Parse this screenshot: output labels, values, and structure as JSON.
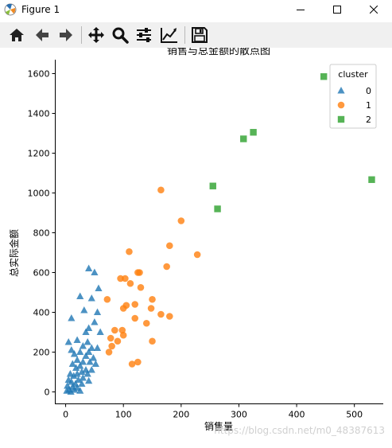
{
  "window": {
    "title": "Figure 1"
  },
  "toolbar": {
    "buttons": [
      {
        "name": "home-icon"
      },
      {
        "name": "back-icon"
      },
      {
        "name": "forward-icon"
      },
      {
        "name": "pan-icon"
      },
      {
        "name": "zoom-icon"
      },
      {
        "name": "configure-subplots-icon"
      },
      {
        "name": "edit-axes-icon"
      },
      {
        "name": "save-icon"
      }
    ]
  },
  "watermark": "https://blog.csdn.net/m0_48387613",
  "chart_data": {
    "type": "scatter",
    "title": "销售与总金额的散点图",
    "xlabel": "销售量",
    "ylabel": "总实际金额",
    "xlim": [
      -18,
      550
    ],
    "ylim": [
      -60,
      1670
    ],
    "xticks": [
      0,
      100,
      200,
      300,
      400,
      500
    ],
    "yticks": [
      0,
      200,
      400,
      600,
      800,
      1000,
      1200,
      1400,
      1600
    ],
    "legend": {
      "title": "cluster",
      "position": "top-right"
    },
    "colors": {
      "0": "#1f77b4",
      "1": "#ff7f0e",
      "2": "#2ca02c"
    },
    "series": [
      {
        "name": "0",
        "marker": "triangle",
        "points": [
          [
            40,
            620
          ],
          [
            50,
            600
          ],
          [
            57,
            520
          ],
          [
            25,
            480
          ],
          [
            45,
            470
          ],
          [
            32,
            410
          ],
          [
            55,
            400
          ],
          [
            10,
            370
          ],
          [
            50,
            350
          ],
          [
            40,
            320
          ],
          [
            35,
            300
          ],
          [
            60,
            300
          ],
          [
            20,
            260
          ],
          [
            5,
            250
          ],
          [
            38,
            250
          ],
          [
            30,
            230
          ],
          [
            45,
            220
          ],
          [
            10,
            210
          ],
          [
            55,
            220
          ],
          [
            25,
            200
          ],
          [
            40,
            200
          ],
          [
            15,
            190
          ],
          [
            35,
            180
          ],
          [
            48,
            170
          ],
          [
            20,
            160
          ],
          [
            30,
            150
          ],
          [
            42,
            150
          ],
          [
            52,
            140
          ],
          [
            12,
            140
          ],
          [
            25,
            130
          ],
          [
            18,
            120
          ],
          [
            35,
            110
          ],
          [
            45,
            110
          ],
          [
            28,
            100
          ],
          [
            8,
            90
          ],
          [
            20,
            90
          ],
          [
            38,
            90
          ],
          [
            14,
            80
          ],
          [
            30,
            70
          ],
          [
            5,
            60
          ],
          [
            22,
            60
          ],
          [
            40,
            55
          ],
          [
            10,
            50
          ],
          [
            17,
            40
          ],
          [
            28,
            40
          ],
          [
            3,
            30
          ],
          [
            12,
            25
          ],
          [
            20,
            20
          ],
          [
            6,
            10
          ],
          [
            15,
            10
          ],
          [
            2,
            5
          ],
          [
            9,
            0
          ],
          [
            25,
            5
          ]
        ]
      },
      {
        "name": "1",
        "marker": "circle",
        "points": [
          [
            165,
            1015
          ],
          [
            200,
            860
          ],
          [
            180,
            735
          ],
          [
            110,
            705
          ],
          [
            228,
            690
          ],
          [
            175,
            630
          ],
          [
            125,
            600
          ],
          [
            128,
            600
          ],
          [
            95,
            570
          ],
          [
            103,
            570
          ],
          [
            112,
            545
          ],
          [
            130,
            525
          ],
          [
            72,
            465
          ],
          [
            150,
            465
          ],
          [
            120,
            440
          ],
          [
            105,
            435
          ],
          [
            100,
            420
          ],
          [
            148,
            420
          ],
          [
            165,
            390
          ],
          [
            180,
            380
          ],
          [
            120,
            370
          ],
          [
            140,
            345
          ],
          [
            85,
            310
          ],
          [
            98,
            310
          ],
          [
            100,
            285
          ],
          [
            78,
            270
          ],
          [
            90,
            255
          ],
          [
            150,
            255
          ],
          [
            80,
            230
          ],
          [
            75,
            200
          ],
          [
            125,
            150
          ],
          [
            115,
            140
          ]
        ]
      },
      {
        "name": "2",
        "marker": "square",
        "points": [
          [
            447,
            1585
          ],
          [
            325,
            1305
          ],
          [
            308,
            1272
          ],
          [
            530,
            1067
          ],
          [
            255,
            1035
          ],
          [
            263,
            920
          ]
        ]
      }
    ]
  }
}
